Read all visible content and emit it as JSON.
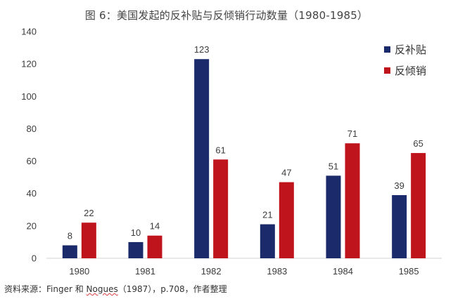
{
  "title": "图 6：美国发起的反补贴与反倾销行动数量（1980-1985）",
  "source": {
    "prefix": "资料来源：Finger 和 ",
    "underlined": "Nogues",
    "suffix": "（1987），p.708，作者整理"
  },
  "colors": {
    "反补贴": "#1b2a6b",
    "反倾销": "#c0141c",
    "axis": "#d0d0d0"
  },
  "chart_data": {
    "type": "bar",
    "title": "图 6：美国发起的反补贴与反倾销行动数量（1980-1985）",
    "categories": [
      "1980",
      "1981",
      "1982",
      "1983",
      "1984",
      "1985"
    ],
    "series": [
      {
        "name": "反补贴",
        "values": [
          8,
          10,
          123,
          21,
          51,
          39
        ]
      },
      {
        "name": "反倾销",
        "values": [
          22,
          14,
          61,
          47,
          71,
          65
        ]
      }
    ],
    "yticks": [
      "0",
      "20",
      "40",
      "60",
      "80",
      "100",
      "120",
      "140"
    ],
    "ylim": [
      0,
      140
    ],
    "xlabel": "",
    "ylabel": "",
    "grid": false,
    "legend": "top-right"
  }
}
